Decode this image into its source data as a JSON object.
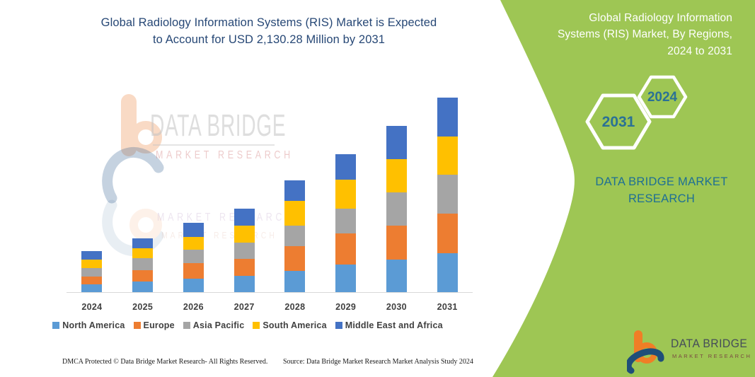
{
  "colors": {
    "panel_green": "#9ec654",
    "navy": "#274876",
    "teal": "#1e6f94",
    "teal_strong": "#2a7195",
    "axis_text": "#404040",
    "axis_line": "#d9d9d9",
    "hex_outline": "#ffffff"
  },
  "left_panel": {
    "title_line1": "Global Radiology Information Systems (RIS) Market is Expected",
    "title_line2": "to Account for USD 2,130.28 Million by 2031",
    "watermark": {
      "line1": "DATA BRIDGE",
      "line2": "MARKET RESEARCH"
    },
    "footer": {
      "dmca": "DMCA Protected © Data Bridge Market Research-  All Rights Reserved.",
      "source": "Source: Data Bridge Market Research  Market Analysis Study 2024"
    }
  },
  "right_panel": {
    "title_line1": "Global Radiology Information",
    "title_line2": "Systems (RIS) Market, By Regions,",
    "title_line3": "2024 to 2031",
    "hexagons": [
      {
        "year": "2031"
      },
      {
        "year": "2024"
      }
    ],
    "brand_text": "DATA BRIDGE MARKET RESEARCH",
    "logo": {
      "name": "DATA BRIDGE",
      "subname": "MARKET RESEARCH"
    }
  },
  "chart_data": {
    "type": "bar",
    "stacked": true,
    "title": "Global Radiology Information Systems (RIS) Market is Expected to Account for USD 2,130.28 Million by 2031",
    "unit": "USD Million",
    "categories": [
      "2024",
      "2025",
      "2026",
      "2027",
      "2028",
      "2029",
      "2030",
      "2031"
    ],
    "series": [
      {
        "name": "North America",
        "color": "#5B9BD5",
        "values": [
          87,
          120,
          149,
          179,
          236,
          303,
          359,
          428
        ]
      },
      {
        "name": "Europe",
        "color": "#ED7D31",
        "values": [
          85,
          123,
          172,
          185,
          265,
          339,
          367,
          431
        ]
      },
      {
        "name": "Asia Pacific",
        "color": "#A5A5A5",
        "values": [
          95,
          126,
          142,
          179,
          231,
          277,
          364,
          429
        ]
      },
      {
        "name": "South America",
        "color": "#FFC000",
        "values": [
          90,
          110,
          141,
          183,
          270,
          313,
          365,
          418
        ]
      },
      {
        "name": "Middle East and Africa",
        "color": "#4472C4",
        "values": [
          92,
          110,
          154,
          190,
          223,
          282,
          367,
          424.28
        ]
      }
    ],
    "totals_estimated": [
      449,
      589,
      758,
      916,
      1225,
      1514,
      1822,
      2130.28
    ],
    "final_year_total_label": "USD 2,130.28 Million",
    "xlabel": "",
    "ylabel": "",
    "y_axis_visible": false,
    "grid": false,
    "legend_position": "bottom"
  }
}
